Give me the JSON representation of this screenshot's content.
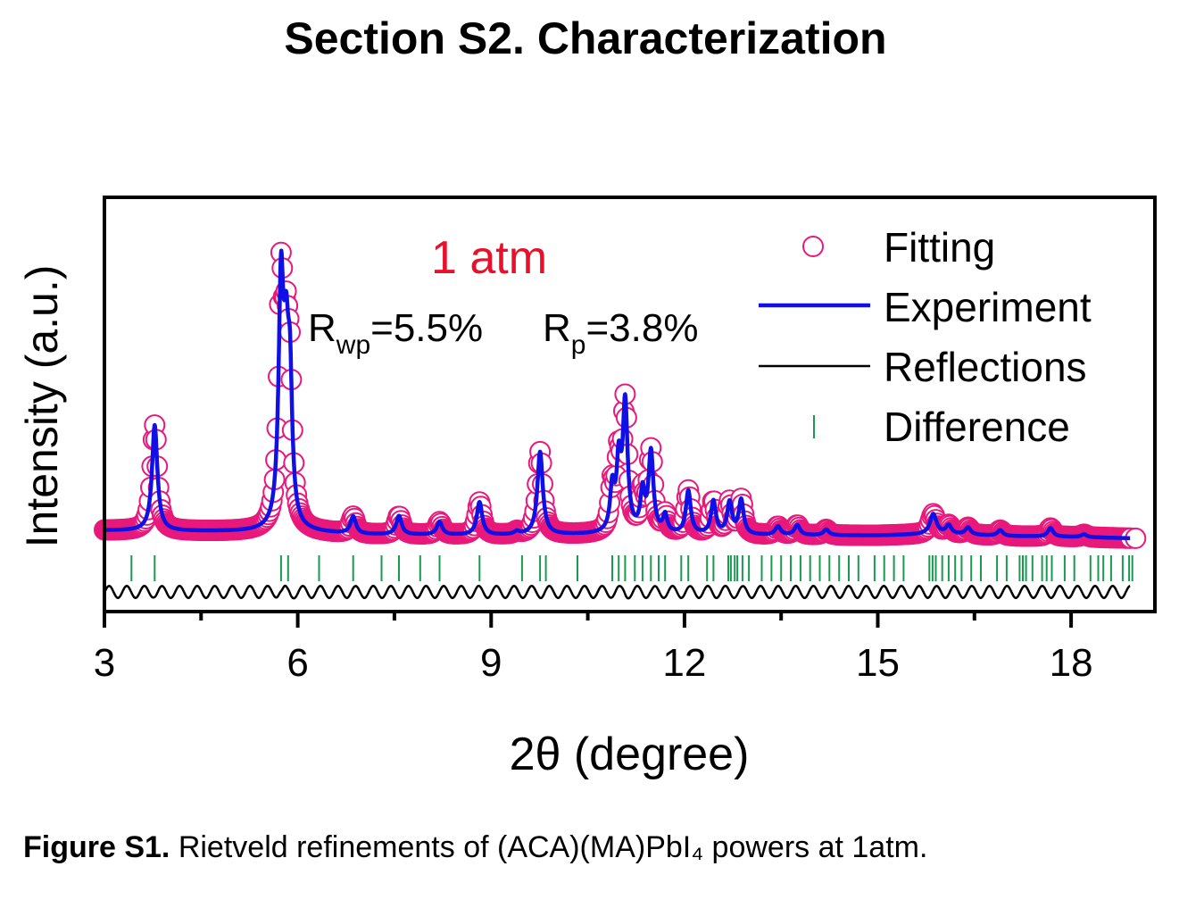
{
  "section_title": "Section S2. Characterization",
  "caption": {
    "label": "Figure S1.",
    "text": "Rietveld refinements of (ACA)(MA)PbI₄ powers at 1atm."
  },
  "colors": {
    "fitting": "#e8197a",
    "experiment": "#1010e6",
    "reflections": "#000000",
    "difference": "#1a9a50",
    "condition_label": "#e8102a"
  },
  "chart_data": {
    "type": "line",
    "xlabel": "2θ (degree)",
    "ylabel": "Intensity (a.u.)",
    "xlim": [
      3,
      19.3
    ],
    "x_ticks": [
      3,
      6,
      9,
      12,
      15,
      18
    ],
    "y_ticks": [],
    "grid": false,
    "legend_position": "top-right",
    "annotations": {
      "condition": "1 atm",
      "rwp_base": "R",
      "rwp_sub": "wp",
      "rwp_value": "=5.5%",
      "rp_base": "R",
      "rp_sub": "p",
      "rp_value": "=3.8%"
    },
    "baseline": [
      [
        3.0,
        0.055
      ],
      [
        4.0,
        0.05
      ],
      [
        5.5,
        0.045
      ],
      [
        6.2,
        0.04
      ],
      [
        7.0,
        0.025
      ],
      [
        9.0,
        0.02
      ],
      [
        10.5,
        0.025
      ],
      [
        11.0,
        0.03
      ],
      [
        12.0,
        0.025
      ],
      [
        13.0,
        0.02
      ],
      [
        15.0,
        0.02
      ],
      [
        16.0,
        0.03
      ],
      [
        17.0,
        0.015
      ],
      [
        18.0,
        0.01
      ],
      [
        19.0,
        0.0
      ]
    ],
    "peaks": [
      {
        "x": 3.78,
        "h": 0.74,
        "w": 0.05
      },
      {
        "x": 5.74,
        "h": 1.6,
        "w": 0.045
      },
      {
        "x": 5.82,
        "h": 1.05,
        "w": 0.05
      },
      {
        "x": 5.88,
        "h": 0.82,
        "w": 0.04
      },
      {
        "x": 6.86,
        "h": 0.12,
        "w": 0.05
      },
      {
        "x": 7.57,
        "h": 0.13,
        "w": 0.05
      },
      {
        "x": 8.2,
        "h": 0.09,
        "w": 0.05
      },
      {
        "x": 8.82,
        "h": 0.23,
        "w": 0.05
      },
      {
        "x": 9.4,
        "h": 0.02,
        "w": 0.05
      },
      {
        "x": 9.76,
        "h": 0.58,
        "w": 0.05
      },
      {
        "x": 10.88,
        "h": 0.3,
        "w": 0.04
      },
      {
        "x": 10.98,
        "h": 0.45,
        "w": 0.04
      },
      {
        "x": 11.08,
        "h": 0.89,
        "w": 0.045
      },
      {
        "x": 11.35,
        "h": 0.27,
        "w": 0.04
      },
      {
        "x": 11.48,
        "h": 0.56,
        "w": 0.045
      },
      {
        "x": 11.7,
        "h": 0.12,
        "w": 0.04
      },
      {
        "x": 12.06,
        "h": 0.3,
        "w": 0.045
      },
      {
        "x": 12.45,
        "h": 0.23,
        "w": 0.045
      },
      {
        "x": 12.7,
        "h": 0.22,
        "w": 0.045
      },
      {
        "x": 12.88,
        "h": 0.24,
        "w": 0.045
      },
      {
        "x": 13.45,
        "h": 0.06,
        "w": 0.05
      },
      {
        "x": 13.75,
        "h": 0.07,
        "w": 0.05
      },
      {
        "x": 14.2,
        "h": 0.04,
        "w": 0.05
      },
      {
        "x": 15.86,
        "h": 0.14,
        "w": 0.06
      },
      {
        "x": 16.1,
        "h": 0.06,
        "w": 0.05
      },
      {
        "x": 16.4,
        "h": 0.05,
        "w": 0.05
      },
      {
        "x": 16.9,
        "h": 0.04,
        "w": 0.05
      },
      {
        "x": 17.68,
        "h": 0.06,
        "w": 0.05
      },
      {
        "x": 18.2,
        "h": 0.02,
        "w": 0.05
      }
    ],
    "reflections_x": [
      3.42,
      3.78,
      5.74,
      5.85,
      6.33,
      6.86,
      7.3,
      7.57,
      7.9,
      8.2,
      8.82,
      9.48,
      9.76,
      9.85,
      10.34,
      10.88,
      10.98,
      11.08,
      11.23,
      11.35,
      11.48,
      11.6,
      11.7,
      11.95,
      12.06,
      12.35,
      12.45,
      12.68,
      12.72,
      12.78,
      12.82,
      12.9,
      13.0,
      13.2,
      13.35,
      13.5,
      13.65,
      13.8,
      13.95,
      14.1,
      14.25,
      14.4,
      14.55,
      14.7,
      14.95,
      15.1,
      15.25,
      15.4,
      15.8,
      15.85,
      15.9,
      16.0,
      16.1,
      16.2,
      16.3,
      16.45,
      16.6,
      16.85,
      17.0,
      17.2,
      17.25,
      17.3,
      17.4,
      17.55,
      17.62,
      17.7,
      17.9,
      18.05,
      18.3,
      18.42,
      18.5,
      18.62,
      18.8,
      18.9,
      18.95
    ]
  }
}
